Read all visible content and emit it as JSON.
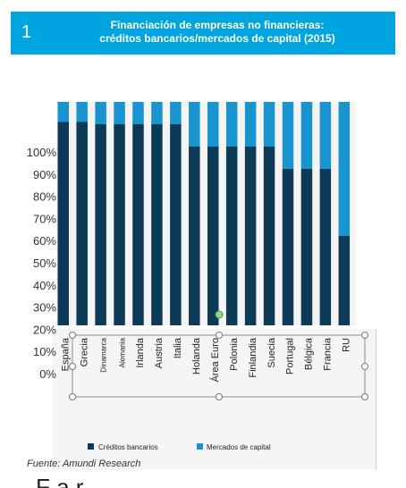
{
  "header": {
    "number": "1",
    "title_line1": "Financiación de empresas no financieras:",
    "title_line2": "créditos bancarios/mercados de capital (2015)"
  },
  "source": "Fuente: Amundi Research",
  "footer_partial_text": "F a r",
  "colors": {
    "header_bg": "#00a5df",
    "bank_credit": "#0c3a57",
    "capital_markets": "#1a94cf",
    "gap": "#ffffff"
  },
  "chart_data": {
    "type": "bar",
    "stacked": true,
    "categories": [
      "España",
      "Grecia",
      "Dinamarca",
      "Alemania",
      "Irlanda",
      "Austria",
      "Italia",
      "Holanda",
      "Área Euro",
      "Polonia",
      "Finlandia",
      "Suecia",
      "Portugal",
      "Bélgica",
      "Francia",
      "RU"
    ],
    "series": [
      {
        "name": "Créditos bancarios",
        "values": [
          91,
          91,
          90,
          90,
          90,
          90,
          90,
          80,
          80,
          80,
          80,
          80,
          70,
          70,
          70,
          40
        ]
      },
      {
        "name": "Mercados de capital",
        "values": [
          9,
          9,
          10,
          10,
          10,
          10,
          10,
          20,
          20,
          20,
          20,
          20,
          30,
          30,
          30,
          60
        ]
      }
    ],
    "y_ticks": [
      "100%",
      "90%",
      "80%",
      "70%",
      "60%",
      "50%",
      "40%",
      "30%",
      "20%",
      "10%",
      "0%"
    ],
    "ylim": [
      0,
      100
    ],
    "legend": [
      "Créditos bancarios",
      "Mercados de capital"
    ],
    "legend_position": "bottom"
  }
}
